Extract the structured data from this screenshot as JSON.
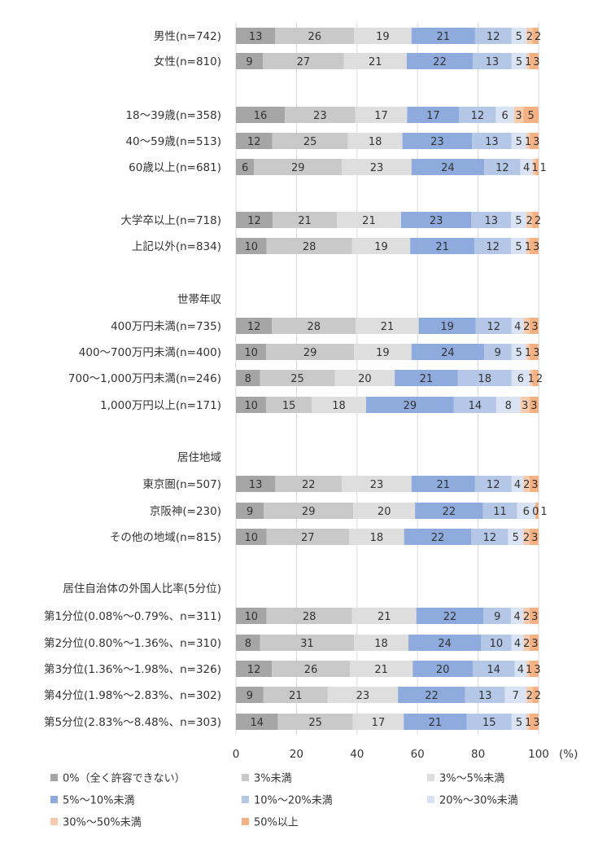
{
  "chart_data": {
    "type": "bar",
    "orientation": "horizontal",
    "stacked": true,
    "xlim": [
      0,
      100
    ],
    "xticks": [
      "0",
      "20",
      "40",
      "60",
      "80",
      "100"
    ],
    "xunit": "(%)",
    "grid": true,
    "legend_position": "bottom",
    "series": [
      {
        "name": "0%（全く許容できない）",
        "color": "#a5a5a5"
      },
      {
        "name": "3%未満",
        "color": "#c9c9c9"
      },
      {
        "name": "3%～5%未満",
        "color": "#dedede"
      },
      {
        "name": "5%～10%未満",
        "color": "#8faadc"
      },
      {
        "name": "10%～20%未満",
        "color": "#b4c7e7"
      },
      {
        "name": "20%～30%未満",
        "color": "#dae3f3"
      },
      {
        "name": "30%～50%未満",
        "color": "#f8cbad"
      },
      {
        "name": "50%以上",
        "color": "#f4b183"
      }
    ],
    "group_headers": [
      "世帯年収",
      "居住地域",
      "居住自治体の外国人比率(5分位)"
    ],
    "categories": [
      {
        "label": "男性(n=742)",
        "values": [
          13,
          26,
          19,
          21,
          12,
          5,
          2,
          2
        ]
      },
      {
        "label": "女性(n=810)",
        "values": [
          9,
          27,
          21,
          22,
          13,
          5,
          1,
          3
        ]
      },
      {
        "label": "18～39歳(n=358)",
        "values": [
          16,
          23,
          17,
          17,
          12,
          6,
          3,
          5
        ]
      },
      {
        "label": "40～59歳(n=513)",
        "values": [
          12,
          25,
          18,
          23,
          13,
          5,
          1,
          3
        ]
      },
      {
        "label": "60歳以上(n=681)",
        "values": [
          6,
          29,
          23,
          24,
          12,
          4,
          1,
          1
        ]
      },
      {
        "label": "大学卒以上(n=718)",
        "values": [
          12,
          21,
          21,
          23,
          13,
          5,
          2,
          2
        ]
      },
      {
        "label": "上記以外(n=834)",
        "values": [
          10,
          28,
          19,
          21,
          12,
          5,
          1,
          3
        ]
      },
      {
        "label": "400万円未満(n=735)",
        "values": [
          12,
          28,
          21,
          19,
          12,
          4,
          2,
          3
        ]
      },
      {
        "label": "400～700万円未満(n=400)",
        "values": [
          10,
          29,
          19,
          24,
          9,
          5,
          1,
          3
        ]
      },
      {
        "label": "700～1,000万円未満(n=246)",
        "values": [
          8,
          25,
          20,
          21,
          18,
          6,
          1,
          2
        ]
      },
      {
        "label": "1,000万円以上(n=171)",
        "values": [
          10,
          15,
          18,
          29,
          14,
          8,
          3,
          3
        ]
      },
      {
        "label": "東京圏(n=507)",
        "values": [
          13,
          22,
          23,
          21,
          12,
          4,
          2,
          3
        ]
      },
      {
        "label": "京阪神(=230)",
        "values": [
          9,
          29,
          20,
          22,
          11,
          6,
          0,
          1
        ]
      },
      {
        "label": "その他の地域(n=815)",
        "values": [
          10,
          27,
          18,
          22,
          12,
          5,
          2,
          3
        ]
      },
      {
        "label": "第1分位(0.08%～0.79%、n=311)",
        "values": [
          10,
          28,
          21,
          22,
          9,
          4,
          2,
          3
        ]
      },
      {
        "label": "第2分位(0.80%～1.36%、n=310)",
        "values": [
          8,
          31,
          18,
          24,
          10,
          4,
          2,
          3
        ]
      },
      {
        "label": "第3分位(1.36%～1.98%、n=326)",
        "values": [
          12,
          26,
          21,
          20,
          14,
          4,
          1,
          3
        ]
      },
      {
        "label": "第4分位(1.98%～2.83%、n=302)",
        "values": [
          9,
          21,
          23,
          22,
          13,
          7,
          2,
          2
        ]
      },
      {
        "label": "第5分位(2.83%～8.48%、n=303)",
        "values": [
          14,
          25,
          17,
          21,
          15,
          5,
          1,
          3
        ]
      }
    ]
  }
}
